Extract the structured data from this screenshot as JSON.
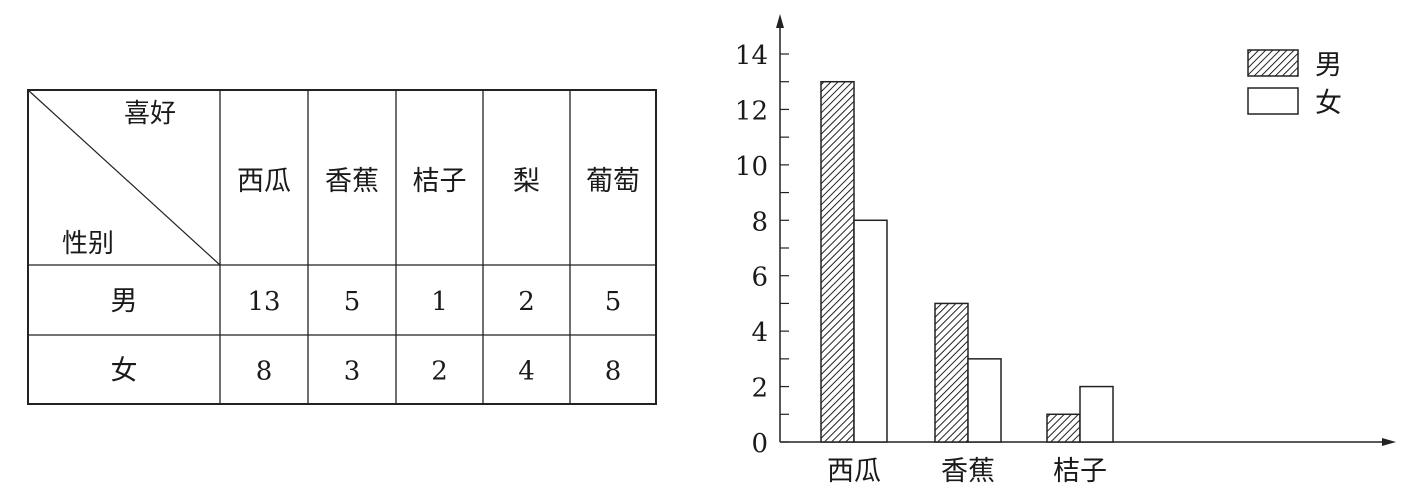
{
  "table": {
    "corner_top": "喜好",
    "corner_bottom": "性别",
    "columns": [
      "西瓜",
      "香蕉",
      "桔子",
      "梨",
      "葡萄"
    ],
    "rows": [
      {
        "label": "男",
        "values": [
          13,
          5,
          1,
          2,
          5
        ]
      },
      {
        "label": "女",
        "values": [
          8,
          3,
          2,
          4,
          8
        ]
      }
    ]
  },
  "chart_data": {
    "type": "bar",
    "categories": [
      "西瓜",
      "香蕉",
      "桔子"
    ],
    "series": [
      {
        "name": "男",
        "values": [
          13,
          5,
          1
        ],
        "fill": "hatched"
      },
      {
        "name": "女",
        "values": [
          8,
          3,
          2
        ],
        "fill": "#ffffff"
      }
    ],
    "yticks": [
      0,
      2,
      4,
      6,
      8,
      10,
      12,
      14
    ],
    "ylim": [
      0,
      14
    ],
    "minor_tick_step": 1,
    "grid": false,
    "legend_position": "top-right",
    "title": "",
    "xlabel": "",
    "ylabel": ""
  }
}
